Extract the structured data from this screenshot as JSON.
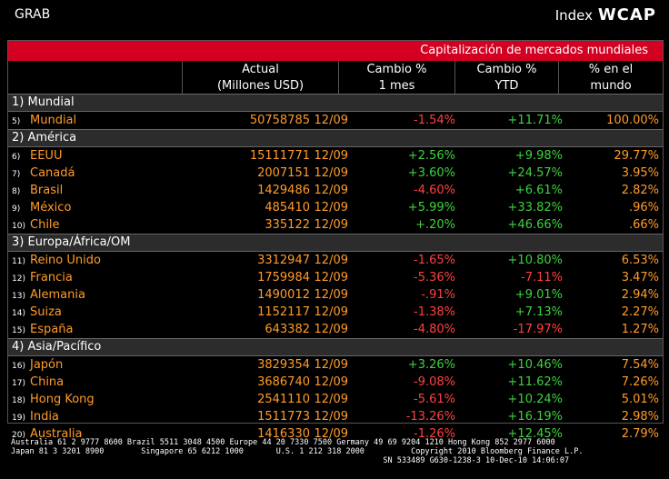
{
  "topbar": {
    "grab": "GRAB",
    "index_label": "Index",
    "wcap": "WCAP"
  },
  "panel": {
    "title": "Capitalización de mercados mundiales",
    "headers": {
      "actual": "Actual",
      "actual_sub": "(Millones USD)",
      "cambio1": "Cambio %",
      "cambio1_sub": "1 mes",
      "cambio2": "Cambio %",
      "cambio2_sub": "YTD",
      "pct": "% en el",
      "pct_sub": "mundo"
    },
    "sections": [
      {
        "label": "1) Mundial",
        "rows": [
          {
            "idx": "5)",
            "name": "Mundial",
            "actual": "50758785",
            "date": "12/09",
            "c1": "-1.54%",
            "c1s": "neg",
            "c2": "+11.71%",
            "c2s": "pos",
            "pct": "100.00%"
          }
        ]
      },
      {
        "label": "2) América",
        "rows": [
          {
            "idx": "6)",
            "name": "EEUU",
            "actual": "15111771",
            "date": "12/09",
            "c1": "+2.56%",
            "c1s": "pos",
            "c2": "+9.98%",
            "c2s": "pos",
            "pct": "29.77%"
          },
          {
            "idx": "7)",
            "name": "Canadá",
            "actual": "2007151",
            "date": "12/09",
            "c1": "+3.60%",
            "c1s": "pos",
            "c2": "+24.57%",
            "c2s": "pos",
            "pct": "3.95%"
          },
          {
            "idx": "8)",
            "name": "Brasil",
            "actual": "1429486",
            "date": "12/09",
            "c1": "-4.60%",
            "c1s": "neg",
            "c2": "+6.61%",
            "c2s": "pos",
            "pct": "2.82%"
          },
          {
            "idx": "9)",
            "name": "México",
            "actual": "485410",
            "date": "12/09",
            "c1": "+5.99%",
            "c1s": "pos",
            "c2": "+33.82%",
            "c2s": "pos",
            "pct": ".96%"
          },
          {
            "idx": "10)",
            "name": "Chile",
            "actual": "335122",
            "date": "12/09",
            "c1": "+.20%",
            "c1s": "pos",
            "c2": "+46.66%",
            "c2s": "pos",
            "pct": ".66%"
          }
        ]
      },
      {
        "label": "3) Europa/África/OM",
        "rows": [
          {
            "idx": "11)",
            "name": "Reino Unido",
            "actual": "3312947",
            "date": "12/09",
            "c1": "-1.65%",
            "c1s": "neg",
            "c2": "+10.80%",
            "c2s": "pos",
            "pct": "6.53%"
          },
          {
            "idx": "12)",
            "name": "Francia",
            "actual": "1759984",
            "date": "12/09",
            "c1": "-5.36%",
            "c1s": "neg",
            "c2": "-7.11%",
            "c2s": "neg",
            "pct": "3.47%"
          },
          {
            "idx": "13)",
            "name": "Alemania",
            "actual": "1490012",
            "date": "12/09",
            "c1": "-.91%",
            "c1s": "neg",
            "c2": "+9.01%",
            "c2s": "pos",
            "pct": "2.94%"
          },
          {
            "idx": "14)",
            "name": "Suiza",
            "actual": "1152117",
            "date": "12/09",
            "c1": "-1.38%",
            "c1s": "neg",
            "c2": "+7.13%",
            "c2s": "pos",
            "pct": "2.27%"
          },
          {
            "idx": "15)",
            "name": "España",
            "actual": "643382",
            "date": "12/09",
            "c1": "-4.80%",
            "c1s": "neg",
            "c2": "-17.97%",
            "c2s": "neg",
            "pct": "1.27%"
          }
        ]
      },
      {
        "label": "4) Asia/Pacífico",
        "rows": [
          {
            "idx": "16)",
            "name": "Japón",
            "actual": "3829354",
            "date": "12/09",
            "c1": "+3.26%",
            "c1s": "pos",
            "c2": "+10.46%",
            "c2s": "pos",
            "pct": "7.54%"
          },
          {
            "idx": "17)",
            "name": "China",
            "actual": "3686740",
            "date": "12/09",
            "c1": "-9.08%",
            "c1s": "neg",
            "c2": "+11.62%",
            "c2s": "pos",
            "pct": "7.26%"
          },
          {
            "idx": "18)",
            "name": "Hong Kong",
            "actual": "2541110",
            "date": "12/09",
            "c1": "-5.61%",
            "c1s": "neg",
            "c2": "+10.24%",
            "c2s": "pos",
            "pct": "5.01%"
          },
          {
            "idx": "19)",
            "name": "India",
            "actual": "1511773",
            "date": "12/09",
            "c1": "-13.26%",
            "c1s": "neg",
            "c2": "+16.19%",
            "c2s": "pos",
            "pct": "2.98%"
          },
          {
            "idx": "20)",
            "name": "Australia",
            "actual": "1416330",
            "date": "12/09",
            "c1": "-1.26%",
            "c1s": "neg",
            "c2": "+12.45%",
            "c2s": "pos",
            "pct": "2.79%"
          }
        ]
      }
    ]
  },
  "footer": {
    "line1": "Australia 61 2 9777 8600 Brazil 5511 3048 4500 Europe 44 20 7330 7500 Germany 49 69 9204 1210 Hong Kong 852 2977 6000",
    "line2": "Japan 81 3 3201 8900        Singapore 65 6212 1000       U.S. 1 212 318 2000          Copyright 2010 Bloomberg Finance L.P.",
    "line3": "                                                                                SN 533489 G630-1238-3 10-Dec-10 14:06:07"
  },
  "colors": {
    "title_bar": "#d40021",
    "orange": "#ff9b29",
    "negative": "#ff4040",
    "positive": "#3fd23f",
    "section_bg": "#2c2c2c"
  }
}
